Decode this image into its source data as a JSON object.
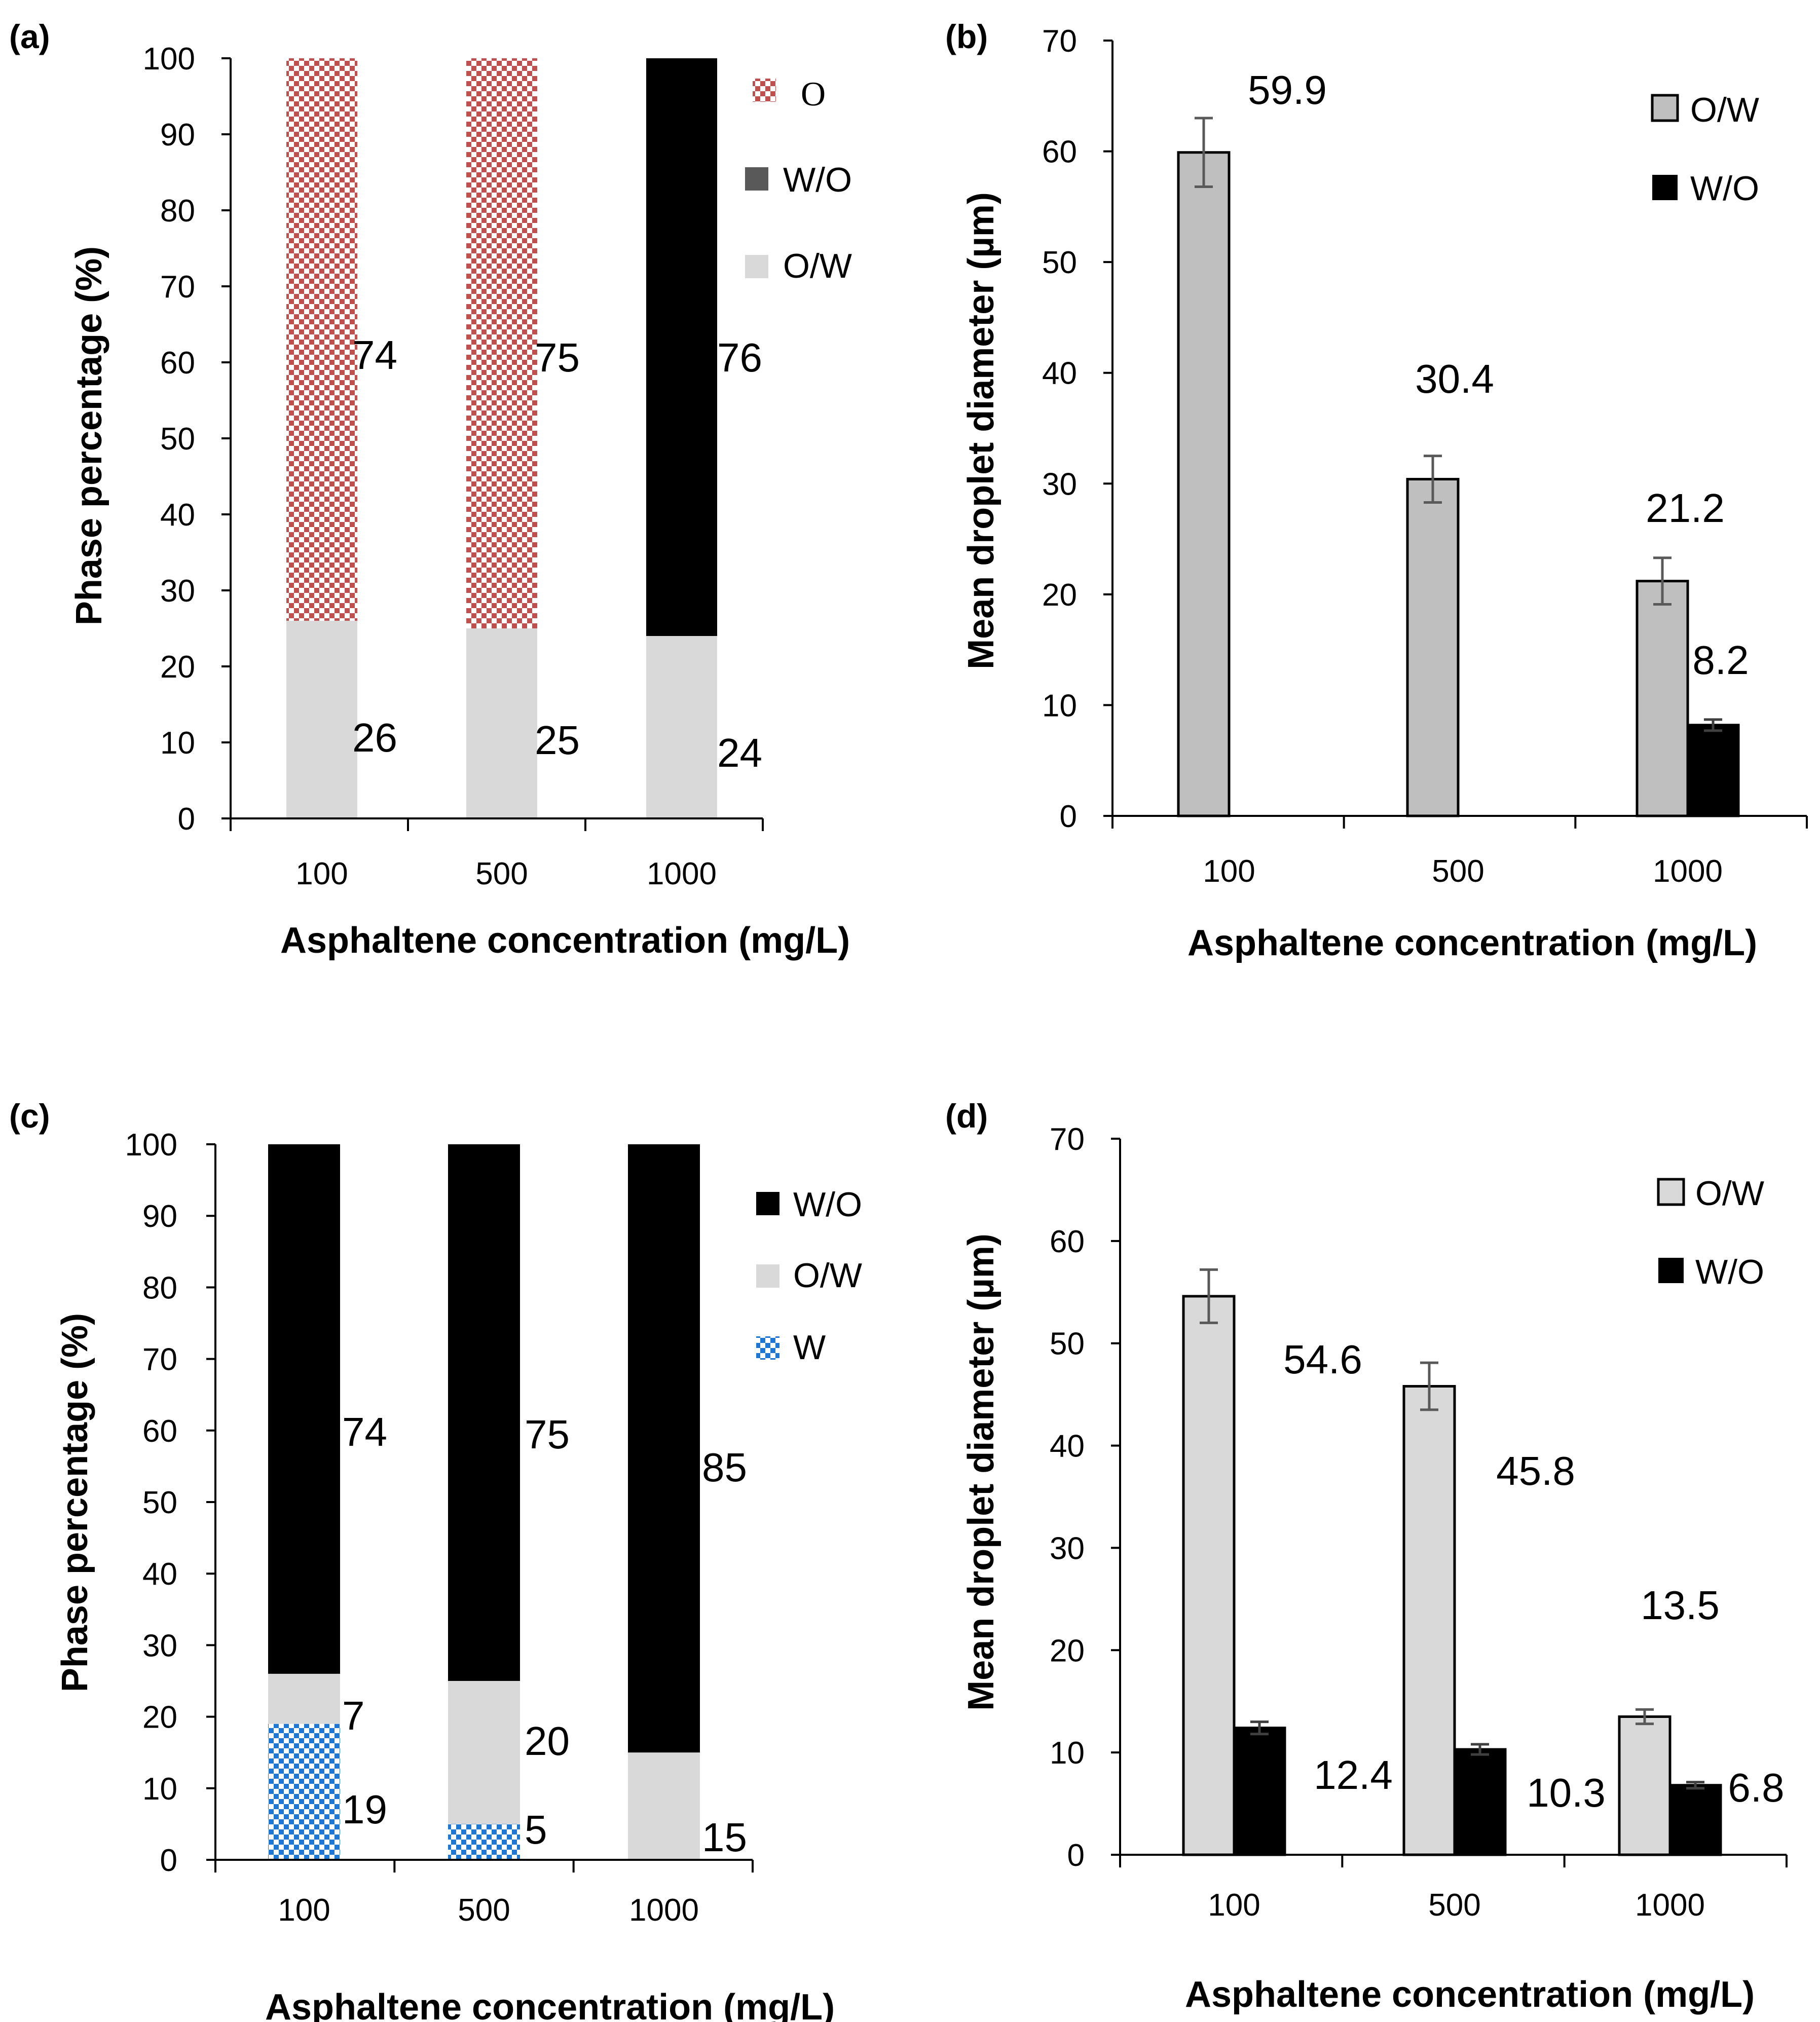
{
  "chart_data": [
    {
      "id": "a",
      "panel_label": "(a)",
      "type": "bar",
      "stacked": true,
      "categories": [
        "100",
        "500",
        "1000"
      ],
      "ylabel": "Phase percentage (%)",
      "xlabel": "Asphaltene concentration (mg/L)",
      "ylim": [
        0,
        100
      ],
      "yticks": [
        0,
        10,
        20,
        30,
        40,
        50,
        60,
        70,
        80,
        90,
        100
      ],
      "legend": [
        "O",
        "W/O",
        "O/W"
      ],
      "series": [
        {
          "name": "O/W",
          "color": "#d9d9d9",
          "values": [
            26,
            25,
            24
          ],
          "labels": [
            "26",
            "25",
            "24"
          ]
        },
        {
          "name": "O",
          "color": "#c0504d",
          "pattern": "checker-red",
          "values": [
            74,
            75,
            0
          ],
          "labels": [
            "74",
            "75",
            ""
          ]
        },
        {
          "name": "W/O",
          "color": "#000000",
          "values": [
            0,
            0,
            76
          ],
          "labels": [
            "",
            "",
            "76"
          ]
        }
      ]
    },
    {
      "id": "b",
      "panel_label": "(b)",
      "type": "bar",
      "stacked": false,
      "categories": [
        "100",
        "500",
        "1000"
      ],
      "ylabel": "Mean droplet diameter (µm)",
      "xlabel": "Asphaltene concentration (mg/L)",
      "ylim": [
        0,
        70
      ],
      "yticks": [
        0,
        10,
        20,
        30,
        40,
        50,
        60,
        70
      ],
      "legend": [
        "O/W",
        "W/O"
      ],
      "series": [
        {
          "name": "O/W",
          "color": "#bfbfbf",
          "values": [
            59.9,
            30.4,
            21.2
          ],
          "errors": [
            3.1,
            2.1,
            2.1
          ],
          "labels": [
            "59.9",
            "30.4",
            "21.2"
          ]
        },
        {
          "name": "W/O",
          "color": "#000000",
          "values": [
            null,
            null,
            8.2
          ],
          "errors": [
            null,
            null,
            0.5
          ],
          "labels": [
            "",
            "",
            "8.2"
          ]
        }
      ]
    },
    {
      "id": "c",
      "panel_label": "(c)",
      "type": "bar",
      "stacked": true,
      "categories": [
        "100",
        "500",
        "1000"
      ],
      "ylabel": "Phase percentage (%)",
      "xlabel": "Asphaltene concentration (mg/L)",
      "ylim": [
        0,
        100
      ],
      "yticks": [
        0,
        10,
        20,
        30,
        40,
        50,
        60,
        70,
        80,
        90,
        100
      ],
      "legend": [
        "W/O",
        "O/W",
        "W"
      ],
      "series": [
        {
          "name": "W",
          "color": "#1f77d4",
          "pattern": "checker-blue",
          "values": [
            19,
            5,
            0
          ],
          "labels": [
            "19",
            "5",
            ""
          ]
        },
        {
          "name": "O/W",
          "color": "#d9d9d9",
          "values": [
            7,
            20,
            15
          ],
          "labels": [
            "7",
            "20",
            "15"
          ]
        },
        {
          "name": "W/O",
          "color": "#000000",
          "values": [
            74,
            75,
            85
          ],
          "labels": [
            "74",
            "75",
            "85"
          ]
        }
      ]
    },
    {
      "id": "d",
      "panel_label": "(d)",
      "type": "bar",
      "stacked": false,
      "categories": [
        "100",
        "500",
        "1000"
      ],
      "ylabel": "Mean droplet diameter (µm)",
      "xlabel": "Asphaltene concentration (mg/L)",
      "ylim": [
        0,
        70
      ],
      "yticks": [
        0,
        10,
        20,
        30,
        40,
        50,
        60,
        70
      ],
      "legend": [
        "O/W",
        "W/O"
      ],
      "series": [
        {
          "name": "O/W",
          "color": "#d9d9d9",
          "values": [
            54.6,
            45.8,
            13.5
          ],
          "errors": [
            2.6,
            2.3,
            0.7
          ],
          "labels": [
            "54.6",
            "45.8",
            "13.5"
          ]
        },
        {
          "name": "W/O",
          "color": "#000000",
          "values": [
            12.4,
            10.3,
            6.8
          ],
          "errors": [
            0.6,
            0.5,
            0.3
          ],
          "labels": [
            "12.4",
            "10.3",
            "6.8"
          ]
        }
      ]
    }
  ]
}
